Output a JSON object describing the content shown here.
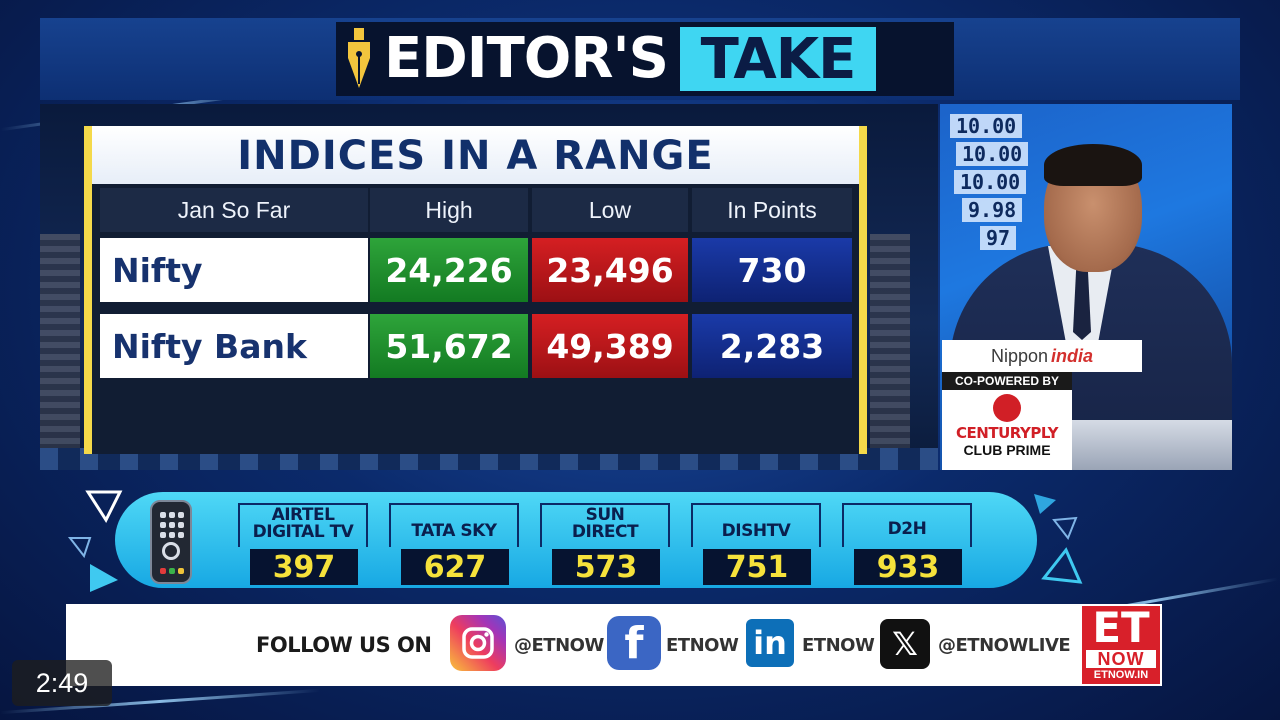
{
  "header": {
    "title_part1": "EDITOR'S",
    "title_part2": "TAKE"
  },
  "board": {
    "title": "INDICES IN A RANGE",
    "columns": [
      "Jan So Far",
      "High",
      "Low",
      "In Points"
    ],
    "rows": [
      {
        "name": "Nifty",
        "high": "24,226",
        "low": "23,496",
        "points": "730"
      },
      {
        "name": "Nifty Bank",
        "high": "51,672",
        "low": "49,389",
        "points": "2,283"
      }
    ]
  },
  "anchor_panel": {
    "ticker_values": [
      "10.00",
      "10.00",
      "10.00",
      "9.98",
      "97"
    ],
    "sponsor_main": "Nippon",
    "sponsor_main_accent": "india",
    "copowered_label": "CO-POWERED BY",
    "sponsor_co_name": "CENTURYPLY",
    "sponsor_co_sub": "CLUB PRIME"
  },
  "channels": [
    {
      "name_line1": "AIRTEL",
      "name_line2": "DIGITAL TV",
      "number": "397"
    },
    {
      "name_line1": "TATA SKY",
      "name_line2": "",
      "number": "627"
    },
    {
      "name_line1": "SUN",
      "name_line2": "DIRECT",
      "number": "573"
    },
    {
      "name_line1": "DISHTV",
      "name_line2": "",
      "number": "751"
    },
    {
      "name_line1": "D2H",
      "name_line2": "",
      "number": "933"
    }
  ],
  "follow": {
    "label": "FOLLOW US ON",
    "instagram": "@ETNOW",
    "facebook": "ETNOW",
    "linkedin": "ETNOW",
    "x": "@ETNOWLIVE"
  },
  "logo": {
    "brand_top": "ET",
    "brand_mid": "NOW",
    "url": "ETNOW.IN"
  },
  "player": {
    "timestamp": "2:49"
  },
  "colors": {
    "accent_cyan": "#3fd6f2",
    "high_green": "#1f8f2e",
    "low_red": "#c0181c",
    "points_blue": "#142f92",
    "et_red": "#d8202a"
  }
}
